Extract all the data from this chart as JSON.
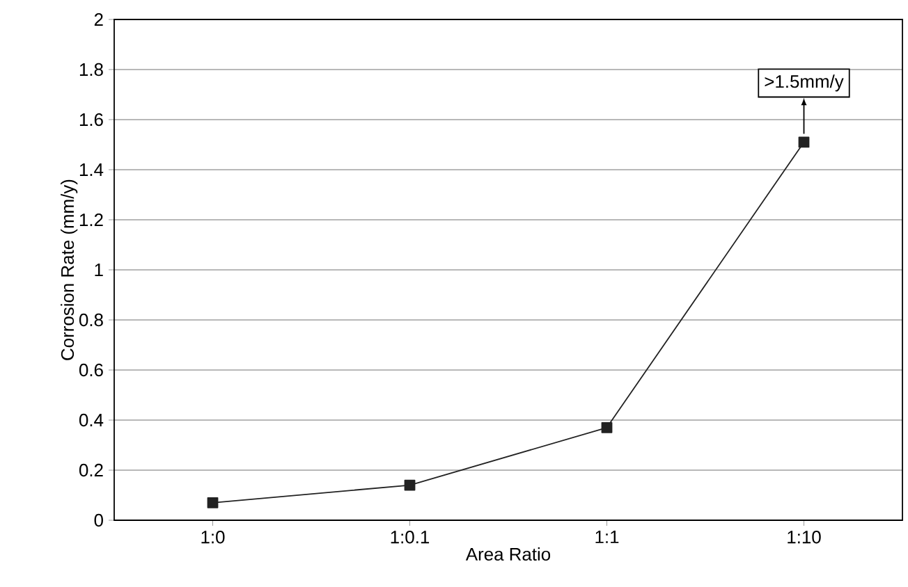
{
  "chart_data": {
    "type": "line",
    "xlabel": "Area Ratio",
    "ylabel": "Corrosion Rate (mm/y)",
    "categories": [
      "1:0",
      "1:0.1",
      "1:1",
      "1:10"
    ],
    "series": [
      {
        "color": "#222222",
        "values": [
          0.07,
          0.14,
          0.37,
          1.51
        ]
      }
    ],
    "ylim": [
      0,
      2
    ],
    "yticks": [
      0,
      0.2,
      0.4,
      0.6,
      0.8,
      1,
      1.2,
      1.4,
      1.6,
      1.8,
      2
    ],
    "grid": "y",
    "marker": "square",
    "line_style": "solid",
    "annotations": [
      {
        "text": ">1.5mm/y",
        "x": "1:10",
        "y": 1.51
      }
    ]
  }
}
